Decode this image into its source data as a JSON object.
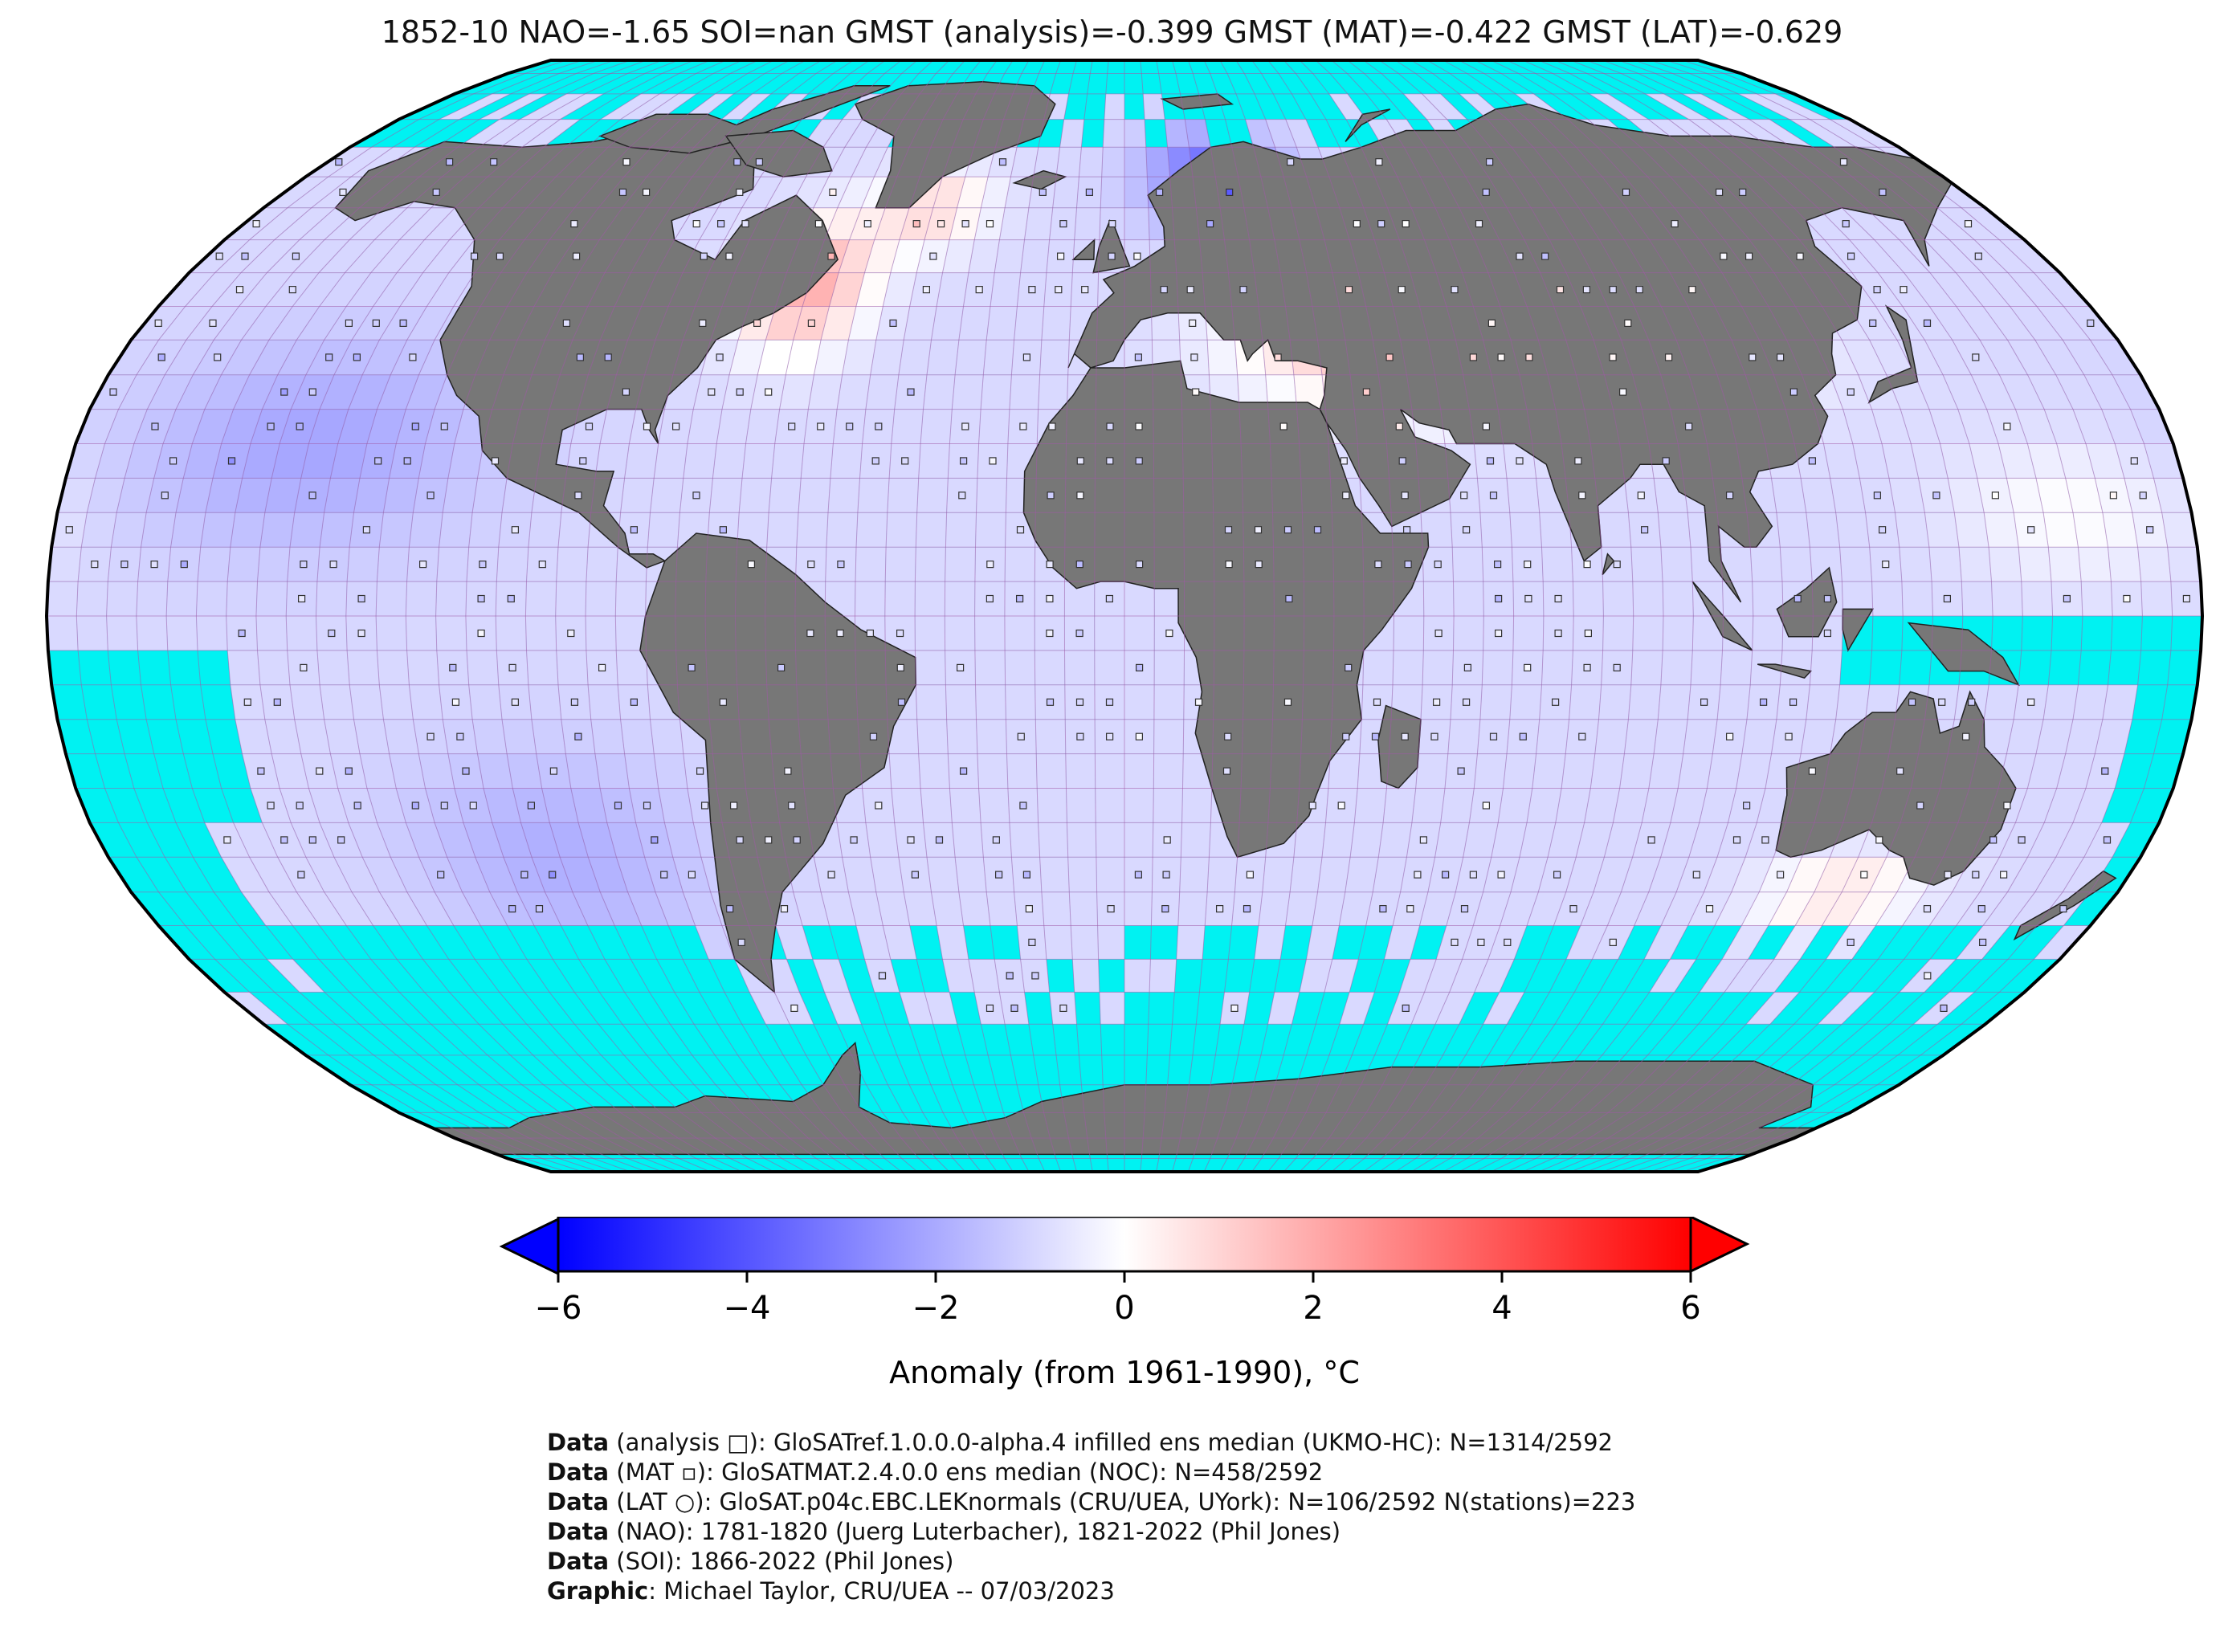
{
  "title": "1852-10 NAO=-1.65 SOI=nan GMST (analysis)=-0.399 GMST (MAT)=-0.422 GMST (LAT)=-0.629",
  "map": {
    "projection": "Robinson",
    "colors": {
      "ocean_unobserved": "#00f2f2",
      "land": "#777777",
      "grid": "#a05aa8",
      "coast": "#222222",
      "border": "#000000"
    },
    "grid_step_deg": 5
  },
  "colorbar": {
    "min": -6,
    "max": 6,
    "ticks": [
      "−6",
      "−4",
      "−2",
      "0",
      "2",
      "4",
      "6"
    ],
    "label": "Anomaly (from 1961-1990), °C",
    "colors": {
      "low": "#0000ff",
      "mid": "#ffffff",
      "high": "#ff0000"
    },
    "extend": "both"
  },
  "footer": [
    {
      "bold": "Data",
      "text": " (analysis □): GloSATref.1.0.0.0-alpha.4 infilled ens median (UKMO-HC): N=1314/2592"
    },
    {
      "bold": "Data",
      "text": " (MAT ▫): GloSATMAT.2.4.0.0 ens median (NOC): N=458/2592"
    },
    {
      "bold": "Data",
      "text": " (LAT ○): GloSAT.p04c.EBC.LEKnormals (CRU/UEA, UYork): N=106/2592 N(stations)=223"
    },
    {
      "bold": "Data",
      "text": " (NAO): 1781-1820 (Juerg Luterbacher), 1821-2022 (Phil Jones)"
    },
    {
      "bold": "Data",
      "text": " (SOI): 1866-2022 (Phil Jones)"
    },
    {
      "bold": "Graphic",
      "text": ": Michael Taylor, CRU/UEA -- 07/03/2023"
    }
  ]
}
